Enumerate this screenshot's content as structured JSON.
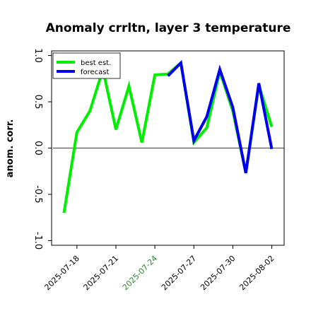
{
  "chart_data": {
    "type": "line",
    "title": "Anomaly crrltn, layer 3 temperature",
    "ylabel": "anom. corr.",
    "xlabel": "",
    "ylim": [
      -1.05,
      1.05
    ],
    "xlim": [
      -0.95,
      16.95
    ],
    "y_ticks": [
      {
        "value": 1.0,
        "label": "1.0"
      },
      {
        "value": 0.5,
        "label": "0.5"
      },
      {
        "value": 0.0,
        "label": "0.0"
      },
      {
        "value": -0.5,
        "label": "-0.5"
      },
      {
        "value": -1.0,
        "label": "-1.0"
      }
    ],
    "x_ticks": [
      {
        "value": 1,
        "label": "2025-07-18",
        "color": "#000000"
      },
      {
        "value": 4,
        "label": "2025-07-21",
        "color": "#000000"
      },
      {
        "value": 7,
        "label": "2025-07-24",
        "color": "#2e8b2e"
      },
      {
        "value": 10,
        "label": "2025-07-27",
        "color": "#000000"
      },
      {
        "value": 13,
        "label": "2025-07-30",
        "color": "#000000"
      },
      {
        "value": 16,
        "label": "2025-08-02",
        "color": "#000000"
      }
    ],
    "zero_line": 0.0,
    "legend_position": "top-left",
    "series": [
      {
        "name": "best est.",
        "color": "#00ee00",
        "x": [
          0,
          1,
          2,
          3,
          4,
          5,
          6,
          7,
          8,
          9,
          10,
          11,
          12,
          13,
          14,
          15,
          16
        ],
        "values": [
          -0.7,
          0.17,
          0.4,
          0.85,
          0.2,
          0.67,
          0.06,
          0.79,
          0.8,
          0.92,
          0.06,
          0.22,
          0.83,
          0.4,
          -0.27,
          0.68,
          0.23
        ]
      },
      {
        "name": "forecast",
        "color": "#0000ee",
        "x": [
          8,
          9,
          10,
          11,
          12,
          13,
          14,
          15,
          16
        ],
        "values": [
          0.78,
          0.92,
          0.08,
          0.34,
          0.85,
          0.44,
          -0.27,
          0.7,
          -0.01
        ]
      }
    ]
  }
}
